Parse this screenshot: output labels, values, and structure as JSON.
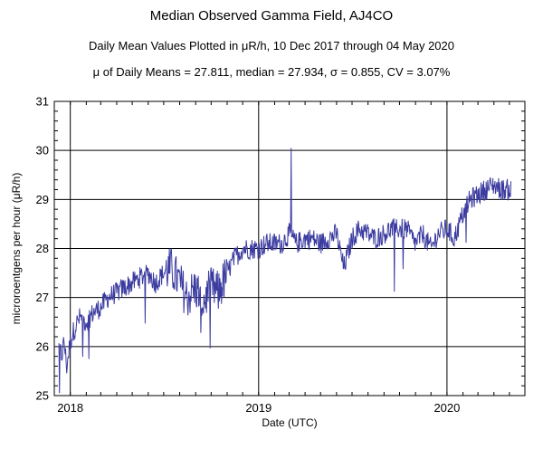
{
  "chart_data": {
    "type": "line",
    "title": "Median Observed Gamma Field, AJ4CO",
    "subtitle": "Daily Mean Values Plotted in μR/h, 10 Dec 2017 through 04 May 2020",
    "stats_line": "μ of Daily Means = 27.811,   median = 27.934,   σ = 0.855,   CV = 3.07%",
    "xlabel": "Date (UTC)",
    "ylabel": "microroentgens per hour (μR/h)",
    "ylim": [
      25,
      31
    ],
    "xlim": [
      "2017-12-01",
      "2020-05-31"
    ],
    "yticks": [
      "25",
      "26",
      "27",
      "28",
      "29",
      "30",
      "31"
    ],
    "xticks": [
      {
        "date": "2018-01-01",
        "label": "2018"
      },
      {
        "date": "2019-01-01",
        "label": "2019"
      },
      {
        "date": "2020-01-01",
        "label": "2020"
      }
    ],
    "grid": true,
    "line_color": "#3b3ba0",
    "series": [
      {
        "x": [
          "2017-12-10",
          "2017-12-15",
          "2017-12-20",
          "2017-12-25",
          "2018-01-01",
          "2018-01-10",
          "2018-01-20",
          "2018-02-01",
          "2018-02-15",
          "2018-03-01",
          "2018-03-15",
          "2018-04-01",
          "2018-04-15",
          "2018-05-01",
          "2018-05-15",
          "2018-06-01",
          "2018-06-15",
          "2018-07-01",
          "2018-07-15",
          "2018-08-01",
          "2018-08-15",
          "2018-09-01",
          "2018-09-15",
          "2018-10-01",
          "2018-10-15",
          "2018-11-01",
          "2018-11-15",
          "2018-12-01",
          "2018-12-15",
          "2019-01-01",
          "2019-01-15",
          "2019-02-01",
          "2019-02-15",
          "2019-03-01",
          "2019-03-15",
          "2019-04-01",
          "2019-04-15",
          "2019-05-01",
          "2019-05-15",
          "2019-06-01",
          "2019-06-15",
          "2019-07-01",
          "2019-07-15",
          "2019-08-01",
          "2019-08-15",
          "2019-09-01",
          "2019-09-15",
          "2019-10-01",
          "2019-10-15",
          "2019-11-01",
          "2019-11-15",
          "2019-12-01",
          "2019-12-15",
          "2020-01-01",
          "2020-01-15",
          "2020-02-01",
          "2020-02-15",
          "2020-03-01",
          "2020-03-15",
          "2020-04-01",
          "2020-04-15",
          "2020-05-04"
        ],
        "values": [
          26.0,
          25.8,
          26.1,
          25.6,
          26.1,
          26.4,
          26.6,
          26.5,
          26.7,
          26.8,
          27.0,
          27.1,
          27.2,
          27.3,
          27.4,
          27.5,
          27.3,
          27.5,
          27.6,
          27.3,
          27.0,
          27.2,
          26.9,
          27.2,
          27.1,
          27.5,
          27.8,
          28.0,
          28.0,
          28.0,
          28.1,
          28.1,
          28.1,
          28.3,
          28.1,
          28.2,
          28.2,
          28.1,
          28.2,
          28.3,
          27.6,
          28.2,
          28.4,
          28.3,
          28.2,
          28.3,
          28.4,
          28.4,
          28.4,
          28.1,
          28.3,
          28.0,
          28.3,
          28.4,
          28.2,
          28.7,
          29.0,
          29.1,
          29.2,
          29.3,
          29.2,
          29.2
        ]
      }
    ]
  }
}
